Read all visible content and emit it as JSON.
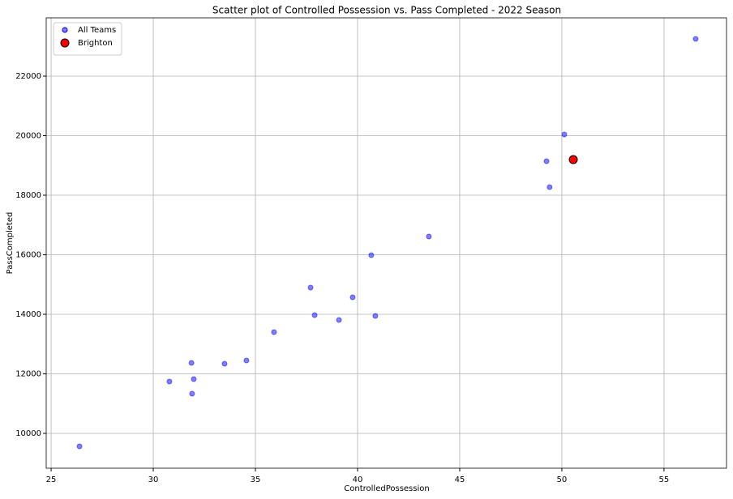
{
  "chart_data": {
    "type": "scatter",
    "title": "Scatter plot of Controlled Possession vs. Pass Completed - 2022 Season",
    "x_label": "ControlledPossession",
    "y_label": "PassCompleted",
    "xlim": [
      24.76,
      58.06
    ],
    "ylim": [
      8830,
      23959
    ],
    "xticks": [
      25,
      30,
      35,
      40,
      45,
      50,
      55
    ],
    "yticks": [
      10000,
      12000,
      14000,
      16000,
      18000,
      20000,
      22000
    ],
    "grid": true,
    "legend": "upper-left",
    "series": [
      {
        "name": "All Teams",
        "color": "#0000ff",
        "alpha": 0.5,
        "size": 6,
        "x": [
          26.39,
          30.79,
          31.87,
          31.98,
          31.9,
          33.49,
          34.56,
          35.91,
          37.7,
          37.9,
          39.09,
          39.76,
          40.67,
          40.87,
          43.49,
          49.25,
          49.4,
          50.12,
          56.55
        ],
        "values": [
          9565,
          11741,
          12367,
          11823,
          11333,
          12340,
          12449,
          13401,
          14898,
          13973,
          13810,
          14571,
          15986,
          13946,
          16612,
          19143,
          18272,
          20041,
          23252
        ]
      },
      {
        "name": "Brighton",
        "color": "#ff0000",
        "alpha": 1,
        "size": 10,
        "edge": "#000000",
        "x": [
          50.56
        ],
        "values": [
          19197
        ]
      }
    ]
  }
}
